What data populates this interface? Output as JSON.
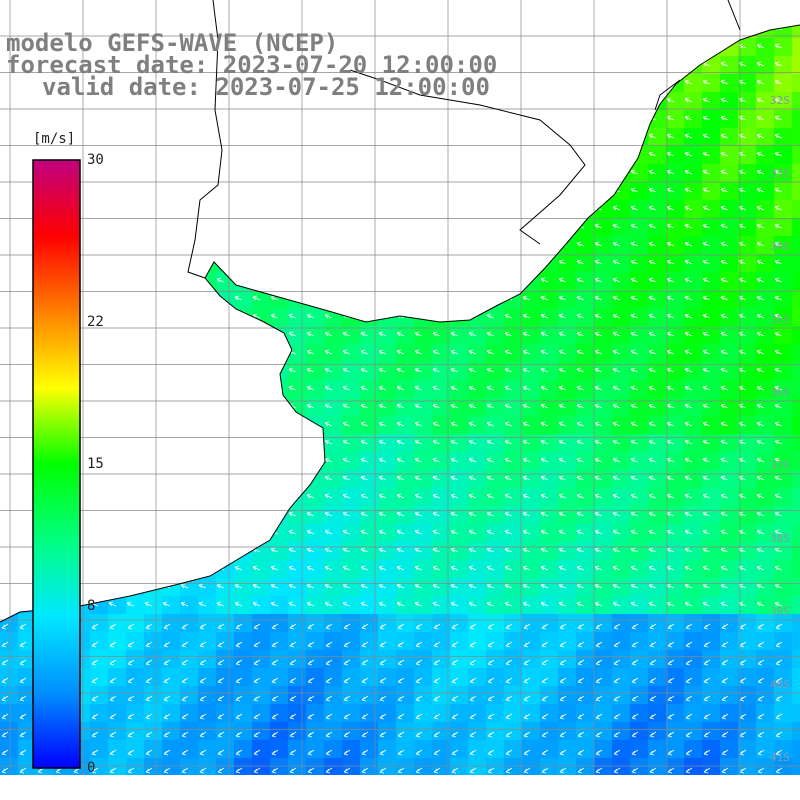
{
  "title": {
    "model": "modelo GEFS-WAVE (NCEP)",
    "forecast": "forecast date: 2023-07-20 12:00:00",
    "valid": "valid date: 2023-07-25 12:00:00"
  },
  "colorbar": {
    "unit": "[m/s]",
    "range": [
      0,
      30
    ],
    "ticks": [
      {
        "value": 30,
        "label": "30"
      },
      {
        "value": 22,
        "label": "22"
      },
      {
        "value": 15,
        "label": "15"
      },
      {
        "value": 8,
        "label": "8"
      },
      {
        "value": 0,
        "label": "0"
      }
    ],
    "colors": [
      "#0000ff",
      "#0090ff",
      "#00e8ff",
      "#00ff80",
      "#00ff00",
      "#ffff00",
      "#ff8000",
      "#ff0000",
      "#c00080"
    ]
  },
  "lat_labels": [
    "32S",
    "33S",
    "34S",
    "35S",
    "36S",
    "37S",
    "38S",
    "39S",
    "40S",
    "41S"
  ],
  "map": {
    "land_color": "#ffffff",
    "grid": true
  }
}
